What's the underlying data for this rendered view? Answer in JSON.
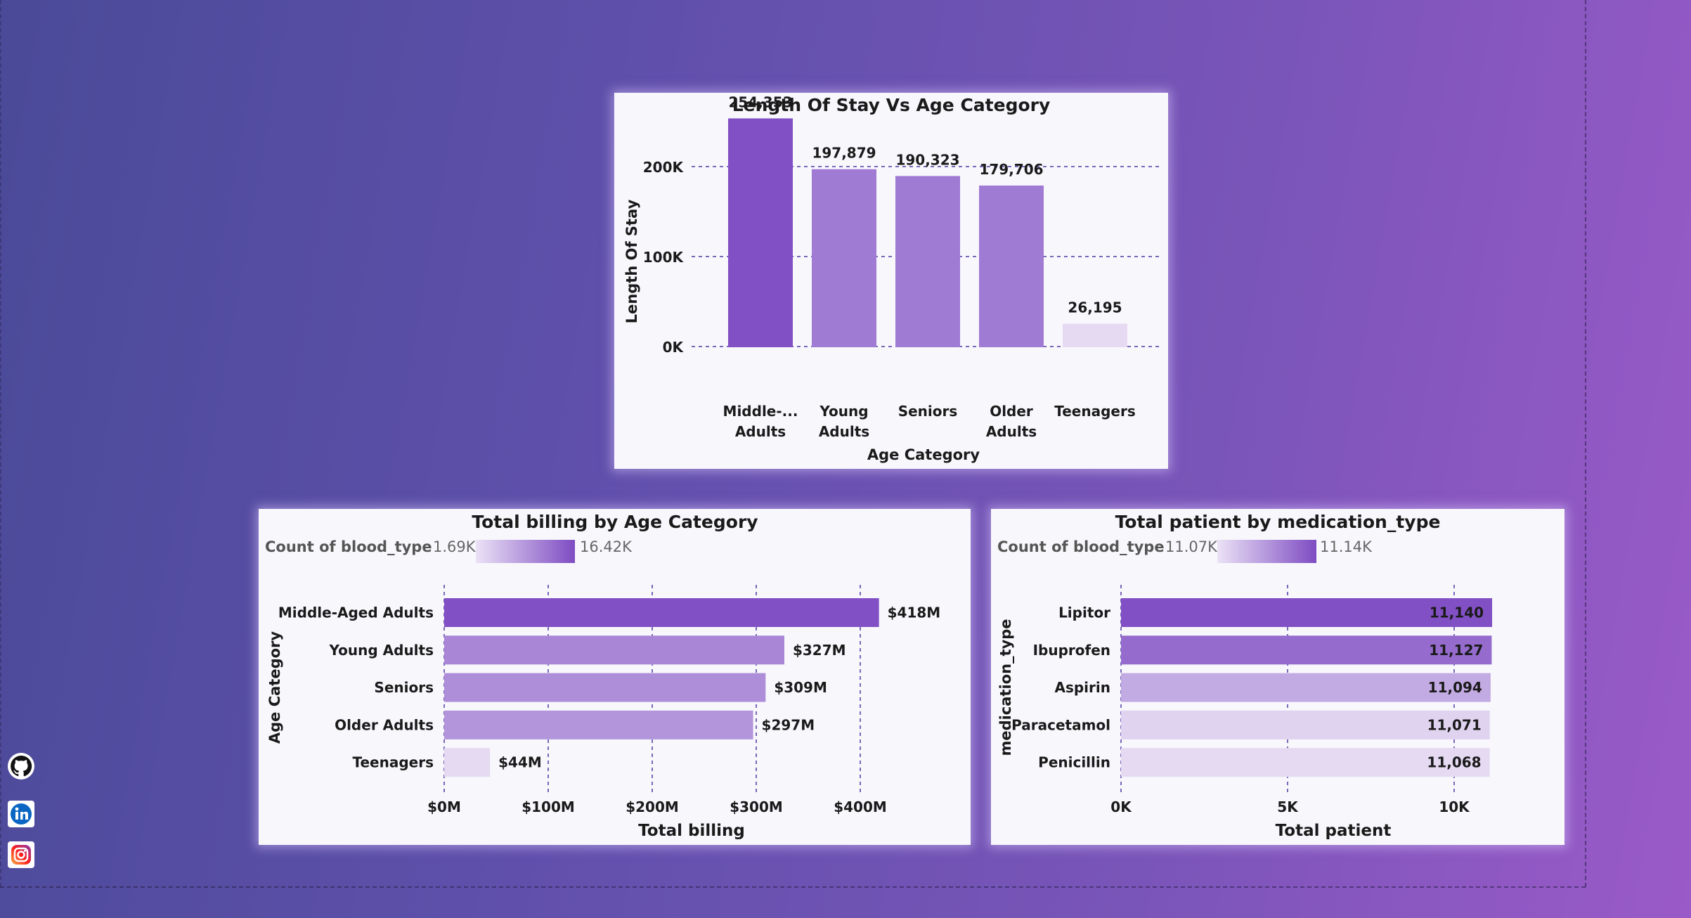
{
  "colors": {
    "bar_dark": "#8150c4",
    "bar_mid": "#9470cf",
    "bar_light": "#a07bd4",
    "bar_faint": "#e5daf2",
    "grid": "#7a68b8",
    "text": "#1a1a1a",
    "muted": "#666666"
  },
  "charts": {
    "stay": {
      "title": "Length Of Stay Vs Age Category",
      "xlabel": "Age Category",
      "ylabel": "Length Of Stay",
      "ticks": [
        "0K",
        "100K",
        "200K"
      ],
      "categories": [
        "Middle-... Adults",
        "Young Adults",
        "Seniors",
        "Older Adults",
        "Teenagers"
      ],
      "value_labels": [
        "254,353",
        "197,879",
        "190,323",
        "179,706",
        "26,195"
      ]
    },
    "billing": {
      "title": "Total billing by Age Category",
      "legend_title": "Count of blood_type",
      "legend_min": "1.69K",
      "legend_max": "16.42K",
      "xlabel": "Total billing",
      "ylabel": "Age Category",
      "ticks": [
        "$0M",
        "$100M",
        "$200M",
        "$300M",
        "$400M"
      ],
      "categories": [
        "Middle-Aged Adults",
        "Young Adults",
        "Seniors",
        "Older Adults",
        "Teenagers"
      ],
      "value_labels": [
        "$418M",
        "$327M",
        "$309M",
        "$297M",
        "$44M"
      ]
    },
    "medication": {
      "title": "Total patient by medication_type",
      "legend_title": "Count of blood_type",
      "legend_min": "11.07K",
      "legend_max": "11.14K",
      "xlabel": "Total patient",
      "ylabel": "medication_type",
      "ticks": [
        "0K",
        "5K",
        "10K"
      ],
      "categories": [
        "Lipitor",
        "Ibuprofen",
        "Aspirin",
        "Paracetamol",
        "Penicillin"
      ],
      "value_labels": [
        "11,140",
        "11,127",
        "11,094",
        "11,071",
        "11,068"
      ]
    }
  },
  "chart_data": [
    {
      "type": "bar",
      "title": "Length Of Stay Vs Age Category",
      "xlabel": "Age Category",
      "ylabel": "Length Of Stay",
      "categories": [
        "Middle-Aged Adults",
        "Young Adults",
        "Seniors",
        "Older Adults",
        "Teenagers"
      ],
      "values": [
        254353,
        197879,
        190323,
        179706,
        26195
      ],
      "ylim": [
        0,
        260000
      ],
      "grid": true
    },
    {
      "type": "bar",
      "orientation": "horizontal",
      "title": "Total billing by Age Category",
      "xlabel": "Total billing",
      "ylabel": "Age Category",
      "categories": [
        "Middle-Aged Adults",
        "Young Adults",
        "Seniors",
        "Older Adults",
        "Teenagers"
      ],
      "values": [
        418,
        327,
        309,
        297,
        44
      ],
      "unit": "$M",
      "xlim": [
        0,
        440
      ],
      "legend": {
        "title": "Count of blood_type",
        "min": "1.69K",
        "max": "16.42K",
        "placement": "top-left"
      },
      "color_level": [
        1.0,
        0.6,
        0.55,
        0.5,
        0.0
      ],
      "grid": true
    },
    {
      "type": "bar",
      "orientation": "horizontal",
      "title": "Total patient by medication_type",
      "xlabel": "Total patient",
      "ylabel": "medication_type",
      "categories": [
        "Lipitor",
        "Ibuprofen",
        "Aspirin",
        "Paracetamol",
        "Penicillin"
      ],
      "values": [
        11140,
        11127,
        11094,
        11071,
        11068
      ],
      "xlim": [
        0,
        11500
      ],
      "legend": {
        "title": "Count of blood_type",
        "min": "11.07K",
        "max": "11.14K",
        "placement": "top-left"
      },
      "color_level": [
        1.0,
        0.8,
        0.35,
        0.05,
        0.0
      ],
      "grid": true
    }
  ],
  "social": {
    "github_icon": "github-icon",
    "linkedin_icon": "linkedin-icon",
    "instagram_icon": "instagram-icon"
  }
}
